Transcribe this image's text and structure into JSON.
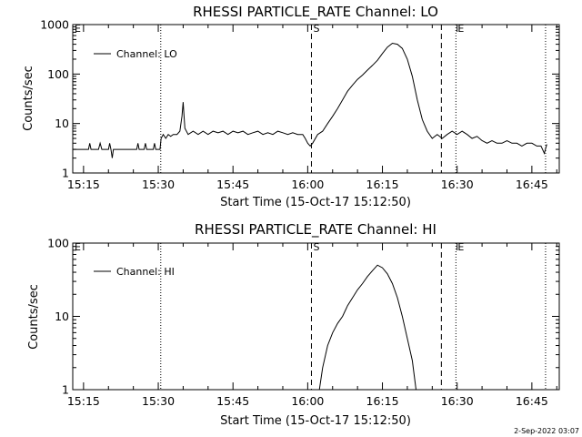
{
  "footer": {
    "timestamp": "2-Sep-2022 03:07"
  },
  "chart_data": [
    {
      "type": "line",
      "title": "RHESSI PARTICLE_RATE Channel: LO",
      "xlabel": "Start Time (15-Oct-17 15:12:50)",
      "ylabel": "Counts/sec",
      "y_scale": "log",
      "xlim": [
        "15:12:50",
        "16:50:30"
      ],
      "ylim": [
        1,
        1000
      ],
      "x_ticks": [
        "15:15",
        "15:30",
        "15:45",
        "16:00",
        "16:15",
        "16:30",
        "16:45"
      ],
      "y_ticks": [
        "1",
        "10",
        "100",
        "1000"
      ],
      "legend": {
        "position": "top-left",
        "entries": [
          "Channel: LO"
        ]
      },
      "markers": [
        {
          "time": "15:12:50",
          "label": "E",
          "style": "none"
        },
        {
          "time": "15:30:30",
          "label": "",
          "style": "dotted"
        },
        {
          "time": "16:00:45",
          "label": "S",
          "style": "dashed"
        },
        {
          "time": "16:26:50",
          "label": "",
          "style": "dashed"
        },
        {
          "time": "16:29:45",
          "label": "E",
          "style": "dotted"
        },
        {
          "time": "16:47:45",
          "label": "",
          "style": "dotted"
        }
      ],
      "series": [
        {
          "name": "Channel: LO",
          "points": [
            [
              "15:12:50",
              3
            ],
            [
              "15:16:00",
              3
            ],
            [
              "15:16:15",
              4
            ],
            [
              "15:16:30",
              3
            ],
            [
              "15:18:00",
              3
            ],
            [
              "15:18:20",
              4
            ],
            [
              "15:18:40",
              3
            ],
            [
              "15:20:00",
              3
            ],
            [
              "15:20:15",
              4
            ],
            [
              "15:20:30",
              3
            ],
            [
              "15:20:45",
              2
            ],
            [
              "15:21:00",
              3
            ],
            [
              "15:25:40",
              3
            ],
            [
              "15:25:55",
              4
            ],
            [
              "15:26:10",
              3
            ],
            [
              "15:27:10",
              3
            ],
            [
              "15:27:25",
              4
            ],
            [
              "15:27:40",
              3
            ],
            [
              "15:29:00",
              3
            ],
            [
              "15:29:15",
              4
            ],
            [
              "15:29:30",
              3
            ],
            [
              "15:30:20",
              3
            ],
            [
              "15:30:35",
              5
            ],
            [
              "15:31:00",
              6
            ],
            [
              "15:31:30",
              5
            ],
            [
              "15:32:00",
              6
            ],
            [
              "15:32:30",
              5.5
            ],
            [
              "15:33:00",
              6
            ],
            [
              "15:33:45",
              6
            ],
            [
              "15:34:20",
              7
            ],
            [
              "15:34:45",
              14
            ],
            [
              "15:35:00",
              27
            ],
            [
              "15:35:10",
              15
            ],
            [
              "15:35:20",
              8
            ],
            [
              "15:36:00",
              6
            ],
            [
              "15:37:00",
              7
            ],
            [
              "15:38:00",
              6
            ],
            [
              "15:39:00",
              7
            ],
            [
              "15:40:00",
              6
            ],
            [
              "15:41:00",
              7
            ],
            [
              "15:42:00",
              6.5
            ],
            [
              "15:43:00",
              7
            ],
            [
              "15:44:00",
              6
            ],
            [
              "15:45:00",
              7
            ],
            [
              "15:46:00",
              6.5
            ],
            [
              "15:47:00",
              7
            ],
            [
              "15:48:00",
              6
            ],
            [
              "15:49:00",
              6.5
            ],
            [
              "15:50:00",
              7
            ],
            [
              "15:51:00",
              6
            ],
            [
              "15:52:00",
              6.5
            ],
            [
              "15:53:00",
              6
            ],
            [
              "15:54:00",
              7
            ],
            [
              "15:55:00",
              6.5
            ],
            [
              "15:56:00",
              6
            ],
            [
              "15:57:00",
              6.5
            ],
            [
              "15:58:00",
              6
            ],
            [
              "15:59:00",
              6
            ],
            [
              "15:59:30",
              5
            ],
            [
              "16:00:00",
              4
            ],
            [
              "16:00:30",
              3.5
            ],
            [
              "16:01:00",
              4
            ],
            [
              "16:02:00",
              6
            ],
            [
              "16:03:00",
              7
            ],
            [
              "16:04:00",
              10
            ],
            [
              "16:05:00",
              14
            ],
            [
              "16:06:00",
              20
            ],
            [
              "16:07:00",
              30
            ],
            [
              "16:08:00",
              45
            ],
            [
              "16:09:00",
              60
            ],
            [
              "16:10:00",
              78
            ],
            [
              "16:11:00",
              95
            ],
            [
              "16:12:00",
              120
            ],
            [
              "16:13:00",
              150
            ],
            [
              "16:14:00",
              190
            ],
            [
              "16:15:00",
              260
            ],
            [
              "16:16:00",
              350
            ],
            [
              "16:17:00",
              420
            ],
            [
              "16:18:00",
              400
            ],
            [
              "16:19:00",
              330
            ],
            [
              "16:20:00",
              200
            ],
            [
              "16:21:00",
              90
            ],
            [
              "16:22:00",
              30
            ],
            [
              "16:23:00",
              12
            ],
            [
              "16:24:00",
              7
            ],
            [
              "16:25:00",
              5
            ],
            [
              "16:26:00",
              6
            ],
            [
              "16:27:00",
              5
            ],
            [
              "16:28:00",
              6
            ],
            [
              "16:29:00",
              7
            ],
            [
              "16:30:00",
              6
            ],
            [
              "16:31:00",
              7
            ],
            [
              "16:32:00",
              6
            ],
            [
              "16:33:00",
              5
            ],
            [
              "16:34:00",
              5.5
            ],
            [
              "16:35:00",
              4.5
            ],
            [
              "16:36:00",
              4
            ],
            [
              "16:37:00",
              4.5
            ],
            [
              "16:38:00",
              4
            ],
            [
              "16:39:00",
              4
            ],
            [
              "16:40:00",
              4.5
            ],
            [
              "16:41:00",
              4
            ],
            [
              "16:42:00",
              4
            ],
            [
              "16:43:00",
              3.5
            ],
            [
              "16:44:00",
              4
            ],
            [
              "16:45:00",
              4
            ],
            [
              "16:46:00",
              3.5
            ],
            [
              "16:46:50",
              3.5
            ],
            [
              "16:47:30",
              2.5
            ],
            [
              "16:48:00",
              3.8
            ]
          ]
        }
      ]
    },
    {
      "type": "line",
      "title": "RHESSI PARTICLE_RATE Channel: HI",
      "xlabel": "Start Time (15-Oct-17 15:12:50)",
      "ylabel": "Counts/sec",
      "y_scale": "log",
      "xlim": [
        "15:12:50",
        "16:50:30"
      ],
      "ylim": [
        1,
        100
      ],
      "x_ticks": [
        "15:15",
        "15:30",
        "15:45",
        "16:00",
        "16:15",
        "16:30",
        "16:45"
      ],
      "y_ticks": [
        "1",
        "10",
        "100"
      ],
      "legend": {
        "position": "top-left",
        "entries": [
          "Channel: HI"
        ]
      },
      "markers": [
        {
          "time": "15:12:50",
          "label": "E",
          "style": "none"
        },
        {
          "time": "15:30:30",
          "label": "",
          "style": "dotted"
        },
        {
          "time": "16:00:45",
          "label": "S",
          "style": "dashed"
        },
        {
          "time": "16:26:50",
          "label": "",
          "style": "dashed"
        },
        {
          "time": "16:29:45",
          "label": "E",
          "style": "dotted"
        },
        {
          "time": "16:47:45",
          "label": "",
          "style": "dotted"
        }
      ],
      "series": [
        {
          "name": "Channel: HI",
          "points": [
            [
              "16:02:20",
              1
            ],
            [
              "16:03:00",
              2
            ],
            [
              "16:04:00",
              4
            ],
            [
              "16:05:00",
              6
            ],
            [
              "16:06:00",
              8
            ],
            [
              "16:07:00",
              10
            ],
            [
              "16:08:00",
              14
            ],
            [
              "16:09:00",
              18
            ],
            [
              "16:10:00",
              23
            ],
            [
              "16:11:00",
              28
            ],
            [
              "16:12:00",
              35
            ],
            [
              "16:13:00",
              42
            ],
            [
              "16:14:00",
              50
            ],
            [
              "16:15:00",
              46
            ],
            [
              "16:16:00",
              38
            ],
            [
              "16:17:00",
              28
            ],
            [
              "16:18:00",
              18
            ],
            [
              "16:19:00",
              10
            ],
            [
              "16:20:00",
              5
            ],
            [
              "16:21:00",
              2.5
            ],
            [
              "16:21:45",
              1
            ]
          ]
        }
      ]
    }
  ]
}
